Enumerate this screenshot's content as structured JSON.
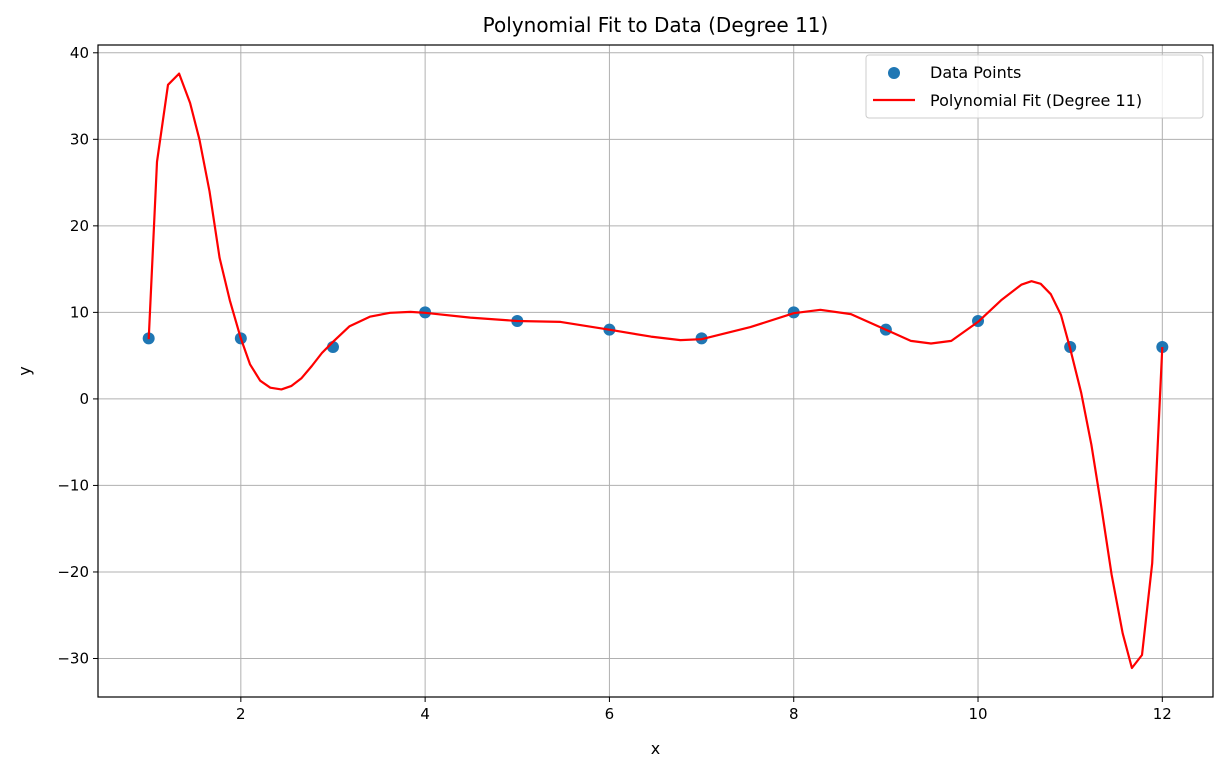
{
  "chart_data": {
    "type": "scatter+line",
    "title": "Polynomial Fit to Data (Degree 11)",
    "xlabel": "x",
    "ylabel": "y",
    "xlim": [
      0.45,
      12.55
    ],
    "ylim": [
      -34.45,
      40.9
    ],
    "xticks": [
      2,
      4,
      6,
      8,
      10,
      12
    ],
    "yticks": [
      -30,
      -20,
      -10,
      0,
      10,
      20,
      30,
      40
    ],
    "grid": true,
    "legend_position": "top-right",
    "series": [
      {
        "name": "Data Points",
        "kind": "scatter",
        "color": "#1f77b4",
        "x": [
          1,
          2,
          3,
          4,
          5,
          6,
          7,
          8,
          9,
          10,
          11,
          12
        ],
        "y": [
          7,
          7,
          6,
          10,
          9,
          8,
          7,
          10,
          8,
          9,
          6,
          6
        ]
      },
      {
        "name": "Polynomial Fit (Degree 11)",
        "kind": "line",
        "color": "#ff0000",
        "x": [
          1,
          1.09,
          1.21,
          1.33,
          1.45,
          1.55,
          1.66,
          1.77,
          1.88,
          2,
          2.1,
          2.21,
          2.32,
          2.44,
          2.55,
          2.66,
          2.77,
          2.88,
          3,
          3.18,
          3.4,
          3.62,
          3.84,
          4,
          4.49,
          5,
          5.47,
          6,
          6.45,
          6.77,
          7,
          7.53,
          8,
          8.29,
          8.62,
          9,
          9.27,
          9.49,
          9.71,
          10,
          10.25,
          10.47,
          10.58,
          10.68,
          10.79,
          10.9,
          11,
          11.12,
          11.23,
          11.34,
          11.45,
          11.57,
          11.67,
          11.78,
          11.89,
          12
        ],
        "y": [
          6.9,
          27.4,
          36.3,
          37.6,
          34.2,
          30,
          24,
          16.3,
          11.4,
          7,
          4,
          2.1,
          1.3,
          1.1,
          1.5,
          2.4,
          3.8,
          5.3,
          6.6,
          8.4,
          9.5,
          9.95,
          10.06,
          9.95,
          9.4,
          9.0,
          8.9,
          8.0,
          7.2,
          6.8,
          6.9,
          8.3,
          9.9,
          10.3,
          9.8,
          8.0,
          6.7,
          6.4,
          6.7,
          8.9,
          11.4,
          13.2,
          13.6,
          13.3,
          12.1,
          9.7,
          5.8,
          0.7,
          -5.3,
          -12.6,
          -20.3,
          -27.1,
          -31.1,
          -29.6,
          -19,
          6
        ]
      }
    ]
  }
}
